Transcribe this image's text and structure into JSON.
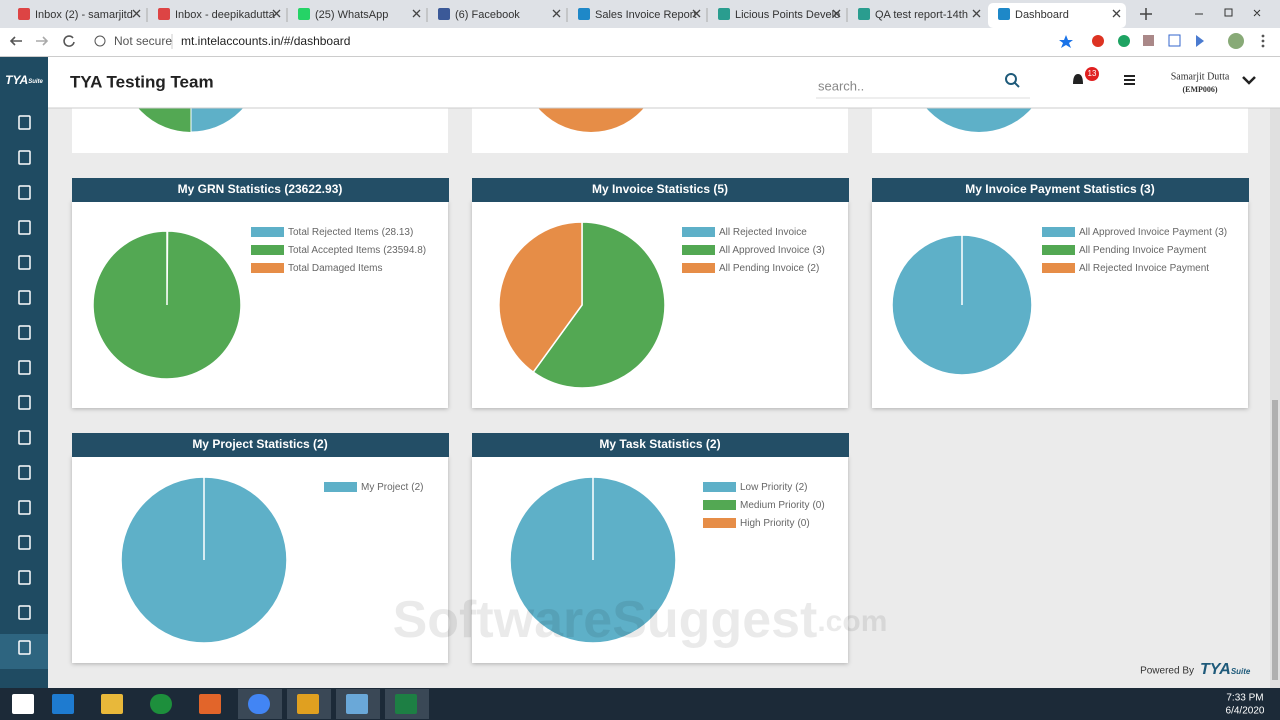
{
  "browser": {
    "tabs": [
      "Inbox (2) - samarjitd",
      "Inbox - deepikadutta",
      "(25) WhatsApp",
      "(6) Facebook",
      "Sales Invoice Report",
      "Licious Points Develo",
      "QA test report-14th",
      "Dashboard"
    ],
    "security": "Not secure",
    "url": "mt.intelaccounts.in/#/dashboard"
  },
  "header": {
    "logo": "TYA",
    "logo_suffix": "Suite",
    "title": "TYA Testing Team",
    "search_placeholder": "search..",
    "notifications": 13,
    "user_name": "Samarjit Dutta",
    "user_id": "(EMP006)"
  },
  "cards": [
    {
      "type": "pie",
      "title": "My GRN Statistics (23622.93)",
      "slices": [
        {
          "label": "Total Rejected Items",
          "value": 28.13,
          "value_label": "(28.13)",
          "color": "#5eb0c8"
        },
        {
          "label": "Total Accepted Items",
          "value": 23594.8,
          "value_label": "(23594.8)",
          "color": "#53a853"
        },
        {
          "label": "Total Damaged Items",
          "value": 0,
          "color": "#e68d47"
        }
      ]
    },
    {
      "type": "pie",
      "title": "My Invoice Statistics (5)",
      "slices": [
        {
          "label": "All Rejected Invoice",
          "value": 0,
          "color": "#5eb0c8"
        },
        {
          "label": "All Approved Invoice",
          "value": 3,
          "value_label": "(3)",
          "color": "#53a853"
        },
        {
          "label": "All Pending Invoice",
          "value": 2,
          "value_label": "(2)",
          "color": "#e68d47"
        }
      ]
    },
    {
      "type": "pie",
      "title": "My Invoice Payment Statistics (3)",
      "slices": [
        {
          "label": "All Approved Invoice Payment",
          "value": 3,
          "value_label": "(3)",
          "color": "#5eb0c8"
        },
        {
          "label": "All Pending Invoice Payment",
          "value": 0,
          "color": "#53a853"
        },
        {
          "label": "All Rejected Invoice Payment",
          "value": 0,
          "color": "#e68d47"
        }
      ]
    },
    {
      "type": "pie",
      "title": "My Project Statistics (2)",
      "slices": [
        {
          "label": "My Project",
          "value": 2,
          "value_label": "(2)",
          "color": "#5eb0c8"
        }
      ]
    },
    {
      "type": "pie",
      "title": "My Task Statistics (2)",
      "slices": [
        {
          "label": "Low Priority",
          "value": 2,
          "value_label": "(2)",
          "color": "#5eb0c8"
        },
        {
          "label": "Medium Priority",
          "value": 0,
          "value_label": "(0)",
          "color": "#53a853"
        },
        {
          "label": "High Priority",
          "value": 0,
          "value_label": "(0)",
          "color": "#e68d47"
        }
      ]
    }
  ],
  "footer": {
    "powered_by": "Powered By",
    "brand": "TYA",
    "brand_suffix": "Suite"
  },
  "watermark": {
    "name": "SoftwareSuggest",
    "suffix": ".com"
  },
  "taskbar": {
    "time": "7:33 PM",
    "date": "6/4/2020"
  }
}
